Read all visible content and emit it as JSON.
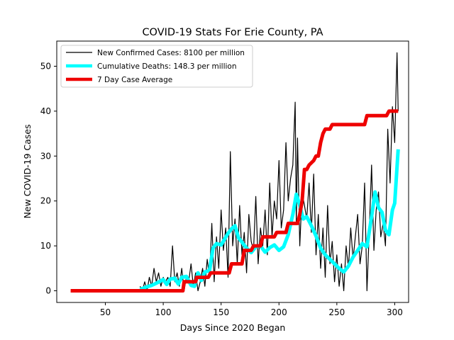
{
  "chart_data": {
    "type": "line",
    "title": "COVID-19 Stats For Erie County, PA",
    "xlabel": "Days Since 2020 Began",
    "ylabel": "New COVID-19 Cases",
    "xlim": [
      8,
      312
    ],
    "ylim": [
      -2.6,
      55.6
    ],
    "xticks": [
      50,
      100,
      150,
      200,
      250,
      300
    ],
    "yticks": [
      0,
      10,
      20,
      30,
      40,
      50
    ],
    "grid": false,
    "legend_position": "top-left",
    "series": [
      {
        "name": "New Confirmed Cases: 8100 per million",
        "color": "#000000",
        "x": [
          80,
          82,
          84,
          86,
          88,
          90,
          92,
          94,
          96,
          98,
          100,
          102,
          104,
          106,
          108,
          110,
          112,
          114,
          116,
          118,
          120,
          122,
          124,
          126,
          128,
          130,
          132,
          134,
          136,
          138,
          140,
          142,
          144,
          146,
          148,
          150,
          152,
          154,
          156,
          158,
          160,
          162,
          164,
          166,
          168,
          170,
          172,
          174,
          176,
          178,
          180,
          182,
          184,
          186,
          188,
          190,
          192,
          194,
          196,
          198,
          200,
          202,
          204,
          206,
          208,
          210,
          212,
          214,
          215,
          216,
          218,
          220,
          222,
          224,
          226,
          228,
          230,
          232,
          234,
          236,
          238,
          240,
          242,
          244,
          246,
          248,
          250,
          252,
          254,
          256,
          258,
          260,
          262,
          264,
          266,
          268,
          270,
          272,
          274,
          276,
          278,
          280,
          282,
          284,
          286,
          288,
          290,
          292,
          294,
          296,
          298,
          300,
          302,
          303
        ],
        "y": [
          1,
          0,
          2,
          0,
          3,
          1,
          5,
          2,
          4,
          1,
          3,
          2,
          3,
          1,
          10,
          2,
          4,
          1,
          5,
          0,
          3,
          2,
          6,
          1,
          4,
          0,
          2,
          5,
          1,
          7,
          3,
          15,
          2,
          12,
          5,
          18,
          9,
          14,
          3,
          31,
          10,
          16,
          6,
          19,
          8,
          13,
          4,
          17,
          11,
          9,
          21,
          6,
          14,
          10,
          18,
          8,
          24,
          12,
          20,
          16,
          29,
          14,
          18,
          33,
          20,
          25,
          28,
          42,
          15,
          34,
          10,
          22,
          19,
          16,
          24,
          13,
          26,
          8,
          17,
          5,
          14,
          3,
          19,
          6,
          11,
          2,
          8,
          1,
          6,
          0,
          10,
          5,
          14,
          7,
          12,
          17,
          6,
          10,
          24,
          0,
          13,
          28,
          9,
          18,
          22,
          12,
          15,
          10,
          36,
          24,
          41,
          33,
          53,
          40
        ]
      },
      {
        "name": "Cumulative Deaths: 148.3 per million",
        "color": "#00ffff",
        "x": [
          80,
          85,
          90,
          95,
          100,
          103,
          106,
          110,
          113,
          116,
          120,
          124,
          127,
          130,
          133,
          136,
          140,
          143,
          146,
          150,
          153,
          156,
          159,
          162,
          165,
          168,
          172,
          176,
          180,
          184,
          188,
          192,
          196,
          200,
          204,
          208,
          212,
          215,
          218,
          221,
          224,
          228,
          232,
          236,
          240,
          244,
          248,
          252,
          256,
          260,
          264,
          268,
          272,
          276,
          280,
          283,
          286,
          289,
          292,
          295,
          298,
          300,
          303
        ],
        "y": [
          0.3,
          0.8,
          1.2,
          1.8,
          2.5,
          1.4,
          2.6,
          2.8,
          1.5,
          3.0,
          3.2,
          1.2,
          1.0,
          4.0,
          2.3,
          4.2,
          4.5,
          9.5,
          10.5,
          10.2,
          11.5,
          12.8,
          13.8,
          14.5,
          11.8,
          10.8,
          9.5,
          8.5,
          9.8,
          10.0,
          8.6,
          9.6,
          10.2,
          9.0,
          9.8,
          12.5,
          17.0,
          21.5,
          19.0,
          16.0,
          16.5,
          14.5,
          12.2,
          9.5,
          8.0,
          7.0,
          6.0,
          5.0,
          4.2,
          5.5,
          7.5,
          9.0,
          10.5,
          9.8,
          16.5,
          22.0,
          18.5,
          17.5,
          13.5,
          12.5,
          18.0,
          19.5,
          31.5
        ]
      },
      {
        "name": "7 Day Case Average",
        "color": "#ee0000",
        "x": [
          20,
          117,
          118,
          128,
          129,
          139,
          141,
          157,
          159,
          168,
          170,
          176,
          178,
          184,
          186,
          196,
          198,
          206,
          208,
          216,
          218,
          220,
          222,
          224,
          226,
          230,
          232,
          234,
          236,
          238,
          240,
          244,
          246,
          256,
          258,
          274,
          276,
          293,
          295,
          303
        ],
        "y": [
          0,
          0,
          2,
          2,
          3,
          3,
          4,
          4,
          6,
          6,
          9,
          9,
          10,
          10,
          12,
          12,
          13,
          13,
          15,
          15,
          17,
          20,
          27,
          27,
          28,
          29,
          30,
          30,
          33,
          35,
          36,
          36,
          37,
          37,
          37,
          37,
          39,
          39,
          40,
          40
        ]
      }
    ]
  }
}
